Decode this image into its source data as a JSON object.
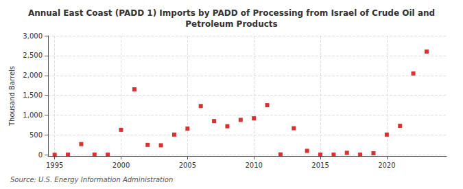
{
  "chart_data": {
    "type": "scatter",
    "title": "Annual East Coast (PADD 1) Imports by PADD of Processing from Israel of Crude Oil and\nPetroleum Products",
    "ylabel": "Thousand Barrels",
    "source": "Source: U.S. Energy Information Administration",
    "x": [
      1995,
      1996,
      1997,
      1998,
      1999,
      2000,
      2001,
      2002,
      2003,
      2004,
      2005,
      2006,
      2007,
      2008,
      2009,
      2010,
      2011,
      2012,
      2013,
      2014,
      2015,
      2016,
      2017,
      2018,
      2019,
      2020,
      2021,
      2022,
      2023
    ],
    "values": [
      0,
      5,
      270,
      5,
      5,
      630,
      1650,
      250,
      240,
      510,
      660,
      1230,
      850,
      720,
      880,
      920,
      1250,
      10,
      670,
      100,
      5,
      5,
      50,
      5,
      40,
      510,
      730,
      2050,
      2600
    ],
    "color": "#cc0000",
    "marker": "square",
    "xlim": [
      1994.5,
      2024.5
    ],
    "xticks": [
      1995,
      2000,
      2005,
      2010,
      2015,
      2020
    ],
    "ylim": [
      -30,
      3000
    ],
    "yticks": [
      0,
      500,
      {
        "value": 1000,
        "label": "1,000"
      },
      {
        "value": 1500,
        "label": "1,500"
      },
      {
        "value": 2000,
        "label": "2,000"
      },
      {
        "value": 2500,
        "label": "2,500"
      },
      {
        "value": 3000,
        "label": "3,000"
      }
    ],
    "grid": true
  }
}
